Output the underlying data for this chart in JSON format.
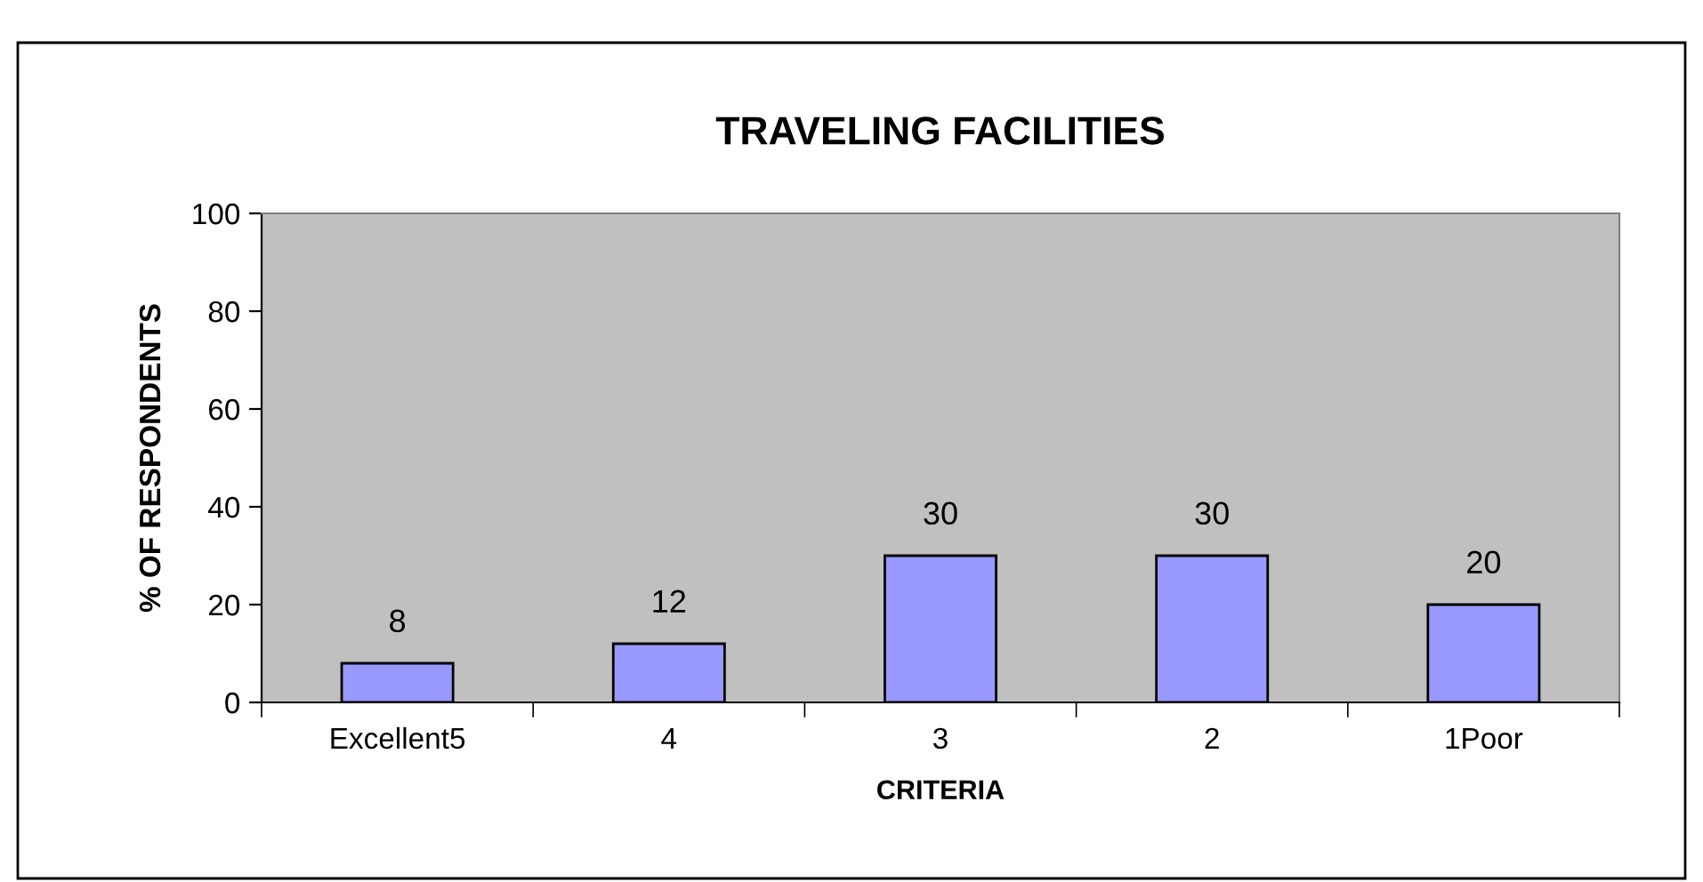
{
  "chart_data": {
    "type": "bar",
    "title": "TRAVELING FACILITIES",
    "xlabel": "CRITERIA",
    "ylabel": "% OF RESPONDENTS",
    "categories": [
      "Excellent5",
      "4",
      "3",
      "2",
      "1Poor"
    ],
    "values": [
      8,
      12,
      30,
      30,
      20
    ],
    "color": "#9999ff",
    "ylim": [
      0,
      100
    ],
    "yticks": [
      0,
      20,
      40,
      60,
      80,
      100
    ],
    "data_labels": true,
    "grid": false,
    "legend": false
  }
}
